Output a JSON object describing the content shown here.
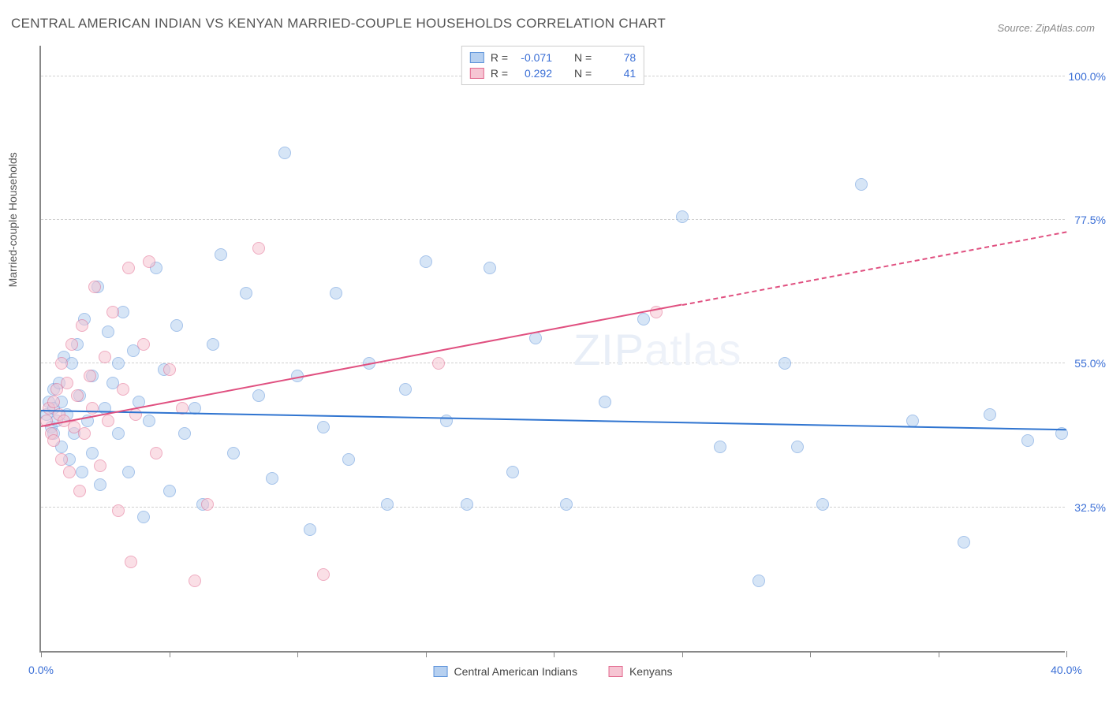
{
  "title": "CENTRAL AMERICAN INDIAN VS KENYAN MARRIED-COUPLE HOUSEHOLDS CORRELATION CHART",
  "source": "Source: ZipAtlas.com",
  "watermark_a": "ZIP",
  "watermark_b": "atlas",
  "chart": {
    "type": "scatter",
    "background_color": "#ffffff",
    "grid_color": "#d0d0d0",
    "axis_color": "#888888",
    "text_color": "#555555",
    "value_color": "#3b6fd6",
    "xlim": [
      0,
      40
    ],
    "ylim": [
      10,
      105
    ],
    "x_ticks": [
      0,
      5,
      10,
      15,
      20,
      25,
      30,
      35,
      40
    ],
    "x_tick_labels": {
      "0": "0.0%",
      "40": "40.0%"
    },
    "y_ticks": [
      32.5,
      55.0,
      77.5,
      100.0
    ],
    "y_tick_labels": [
      "32.5%",
      "55.0%",
      "77.5%",
      "100.0%"
    ],
    "y_axis_title": "Married-couple Households",
    "marker_radius": 8,
    "marker_opacity": 0.55,
    "line_width": 2,
    "series": [
      {
        "name": "Central American Indians",
        "color_fill": "#b6d0f0",
        "color_stroke": "#5d93da",
        "line_color": "#2f74d0",
        "R": "-0.071",
        "N": "78",
        "trend": {
          "x1": 0,
          "y1": 47.5,
          "x2": 40,
          "y2": 44.5,
          "dash_from_x": null
        },
        "points": [
          [
            0.2,
            47
          ],
          [
            0.3,
            49
          ],
          [
            0.4,
            45
          ],
          [
            0.5,
            48
          ],
          [
            0.5,
            44
          ],
          [
            0.5,
            51
          ],
          [
            0.6,
            46
          ],
          [
            0.7,
            52
          ],
          [
            0.8,
            42
          ],
          [
            0.8,
            49
          ],
          [
            0.9,
            56
          ],
          [
            1.0,
            47
          ],
          [
            1.1,
            40
          ],
          [
            1.2,
            55
          ],
          [
            1.3,
            44
          ],
          [
            1.4,
            58
          ],
          [
            1.5,
            50
          ],
          [
            1.6,
            38
          ],
          [
            1.7,
            62
          ],
          [
            1.8,
            46
          ],
          [
            2.0,
            53
          ],
          [
            2.0,
            41
          ],
          [
            2.2,
            67
          ],
          [
            2.3,
            36
          ],
          [
            2.5,
            48
          ],
          [
            2.6,
            60
          ],
          [
            2.8,
            52
          ],
          [
            3.0,
            55
          ],
          [
            3.0,
            44
          ],
          [
            3.2,
            63
          ],
          [
            3.4,
            38
          ],
          [
            3.6,
            57
          ],
          [
            3.8,
            49
          ],
          [
            4.0,
            31
          ],
          [
            4.2,
            46
          ],
          [
            4.5,
            70
          ],
          [
            4.8,
            54
          ],
          [
            5.0,
            35
          ],
          [
            5.3,
            61
          ],
          [
            5.6,
            44
          ],
          [
            6.0,
            48
          ],
          [
            6.3,
            33
          ],
          [
            6.7,
            58
          ],
          [
            7.0,
            72
          ],
          [
            7.5,
            41
          ],
          [
            8.0,
            66
          ],
          [
            8.5,
            50
          ],
          [
            9.0,
            37
          ],
          [
            9.5,
            88
          ],
          [
            10.0,
            53
          ],
          [
            10.5,
            29
          ],
          [
            11.0,
            45
          ],
          [
            11.5,
            66
          ],
          [
            12.0,
            40
          ],
          [
            12.8,
            55
          ],
          [
            13.5,
            33
          ],
          [
            14.2,
            51
          ],
          [
            15.0,
            71
          ],
          [
            15.8,
            46
          ],
          [
            16.6,
            33
          ],
          [
            17.5,
            70
          ],
          [
            18.4,
            38
          ],
          [
            19.3,
            59
          ],
          [
            20.5,
            33
          ],
          [
            22.0,
            49
          ],
          [
            23.5,
            62
          ],
          [
            25.0,
            78
          ],
          [
            26.5,
            42
          ],
          [
            28.0,
            21
          ],
          [
            29.0,
            55
          ],
          [
            29.5,
            42
          ],
          [
            30.5,
            33
          ],
          [
            32.0,
            83
          ],
          [
            34.0,
            46
          ],
          [
            36.0,
            27
          ],
          [
            37.0,
            47
          ],
          [
            38.5,
            43
          ],
          [
            39.8,
            44
          ]
        ]
      },
      {
        "name": "Kenyans",
        "color_fill": "#f6c5d3",
        "color_stroke": "#e26a8f",
        "line_color": "#e05080",
        "R": "0.292",
        "N": "41",
        "trend": {
          "x1": 0,
          "y1": 45.0,
          "x2": 40,
          "y2": 75.5,
          "dash_from_x": 25
        },
        "points": [
          [
            0.2,
            46
          ],
          [
            0.3,
            48
          ],
          [
            0.4,
            44
          ],
          [
            0.5,
            49
          ],
          [
            0.5,
            43
          ],
          [
            0.6,
            51
          ],
          [
            0.7,
            47
          ],
          [
            0.8,
            40
          ],
          [
            0.8,
            55
          ],
          [
            0.9,
            46
          ],
          [
            1.0,
            52
          ],
          [
            1.1,
            38
          ],
          [
            1.2,
            58
          ],
          [
            1.3,
            45
          ],
          [
            1.4,
            50
          ],
          [
            1.5,
            35
          ],
          [
            1.6,
            61
          ],
          [
            1.7,
            44
          ],
          [
            1.9,
            53
          ],
          [
            2.0,
            48
          ],
          [
            2.1,
            67
          ],
          [
            2.3,
            39
          ],
          [
            2.5,
            56
          ],
          [
            2.6,
            46
          ],
          [
            2.8,
            63
          ],
          [
            3.0,
            32
          ],
          [
            3.2,
            51
          ],
          [
            3.4,
            70
          ],
          [
            3.5,
            24
          ],
          [
            3.7,
            47
          ],
          [
            4.0,
            58
          ],
          [
            4.2,
            71
          ],
          [
            4.5,
            41
          ],
          [
            5.0,
            54
          ],
          [
            5.5,
            48
          ],
          [
            6.0,
            21
          ],
          [
            6.5,
            33
          ],
          [
            8.5,
            73
          ],
          [
            11.0,
            22
          ],
          [
            15.5,
            55
          ],
          [
            24.0,
            63
          ]
        ]
      }
    ],
    "legend_top": {
      "R_label": "R =",
      "N_label": "N ="
    },
    "legend_bottom_labels": [
      "Central American Indians",
      "Kenyans"
    ]
  }
}
